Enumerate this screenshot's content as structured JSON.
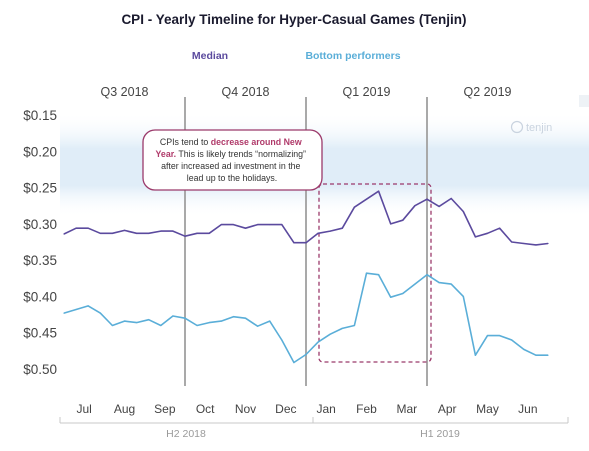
{
  "chart_data": {
    "type": "line",
    "title": "CPI - Yearly Timeline for Hyper-Casual Games (Tenjin)",
    "legend": [
      "Median",
      "Bottom performers"
    ],
    "quarters": [
      "Q3 2018",
      "Q4 2018",
      "Q1 2019",
      "Q2 2019"
    ],
    "months": [
      "Jul",
      "Aug",
      "Sep",
      "Oct",
      "Nov",
      "Dec",
      "Jan",
      "Feb",
      "Mar",
      "Apr",
      "May",
      "Jun"
    ],
    "halves": [
      "H2 2018",
      "H1 2019"
    ],
    "yticks": [
      "$0.15",
      "$0.20",
      "$0.25",
      "$0.30",
      "$0.35",
      "$0.40",
      "$0.45",
      "$0.50"
    ],
    "ylim": [
      0.15,
      0.5
    ],
    "y_inverted": true,
    "series": [
      {
        "name": "Median",
        "color": "#5b4a9e",
        "x": [
          0.0,
          0.3,
          0.6,
          0.9,
          1.2,
          1.5,
          1.8,
          2.1,
          2.4,
          2.7,
          3.0,
          3.3,
          3.6,
          3.9,
          4.2,
          4.5,
          4.8,
          5.1,
          5.4,
          5.7,
          6.0,
          6.3,
          6.6,
          6.9,
          7.2,
          7.5,
          7.8,
          8.1,
          8.4,
          8.7,
          9.0,
          9.3,
          9.6,
          9.9,
          10.2,
          10.5,
          10.8,
          11.1,
          11.4,
          11.7,
          12.0
        ],
        "values": [
          0.314,
          0.306,
          0.306,
          0.313,
          0.313,
          0.309,
          0.313,
          0.313,
          0.31,
          0.31,
          0.317,
          0.313,
          0.313,
          0.301,
          0.301,
          0.306,
          0.301,
          0.301,
          0.301,
          0.326,
          0.326,
          0.313,
          0.31,
          0.306,
          0.277,
          0.266,
          0.255,
          0.3,
          0.295,
          0.275,
          0.266,
          0.276,
          0.265,
          0.283,
          0.318,
          0.313,
          0.306,
          0.325,
          0.327,
          0.329,
          0.327
        ]
      },
      {
        "name": "Bottom performers",
        "color": "#5aaed8",
        "x": [
          0.0,
          0.3,
          0.6,
          0.9,
          1.2,
          1.5,
          1.8,
          2.1,
          2.4,
          2.7,
          3.0,
          3.3,
          3.6,
          3.9,
          4.2,
          4.5,
          4.8,
          5.1,
          5.4,
          5.7,
          6.0,
          6.3,
          6.6,
          6.9,
          7.2,
          7.5,
          7.8,
          8.1,
          8.4,
          8.7,
          9.0,
          9.3,
          9.6,
          9.9,
          10.2,
          10.5,
          10.8,
          11.1,
          11.4,
          11.7,
          12.0
        ],
        "values": [
          0.423,
          0.418,
          0.413,
          0.423,
          0.44,
          0.434,
          0.436,
          0.432,
          0.44,
          0.427,
          0.43,
          0.44,
          0.436,
          0.434,
          0.428,
          0.43,
          0.441,
          0.434,
          0.46,
          0.491,
          0.48,
          0.463,
          0.452,
          0.444,
          0.44,
          0.368,
          0.37,
          0.401,
          0.396,
          0.383,
          0.37,
          0.381,
          0.383,
          0.4,
          0.481,
          0.454,
          0.454,
          0.46,
          0.473,
          0.481,
          0.481
        ]
      }
    ],
    "annotation": {
      "prefix": "CPIs tend to ",
      "highlight_a": "decrease around New",
      "highlight_b": "Year.",
      "line2_rest": " This is likely trends “normalizing”",
      "line3": "after increased ad investment in the",
      "line4": "lead up to the holidays."
    },
    "watermark": "tenjin",
    "colors": {
      "median": "#5b4a9e",
      "bottom": "#5aaed8",
      "annotation_border": "#9b3a6b",
      "annotation_text_highlight": "#b03a6a",
      "dashed_box": "#9b3a6b",
      "band": "#dbeaf6",
      "quarter_divider": "#a9a9a9"
    }
  }
}
